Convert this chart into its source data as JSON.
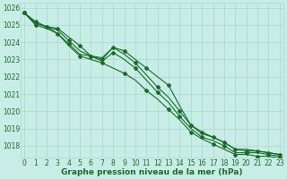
{
  "title": "Graphe pression niveau de la mer (hPa)",
  "bg_color": "#c8ece6",
  "grid_color": "#a8d8cc",
  "line_color": "#1a6b2a",
  "x_ticks": [
    0,
    1,
    2,
    3,
    4,
    5,
    6,
    7,
    8,
    9,
    10,
    11,
    12,
    13,
    14,
    15,
    16,
    17,
    18,
    19,
    20,
    21,
    22,
    23
  ],
  "ylim": [
    1017.3,
    1026.3
  ],
  "y_ticks": [
    1018,
    1019,
    1020,
    1021,
    1022,
    1023,
    1024,
    1025,
    1026
  ],
  "series": [
    [
      1025.7,
      1025.2,
      1024.9,
      1024.8,
      1024.3,
      1023.8,
      1023.2,
      1023.0,
      1023.7,
      1023.5,
      1023.0,
      1022.5,
      1022.0,
      1021.5,
      1020.3,
      1019.2,
      1018.7,
      1018.5,
      1018.2,
      1017.8,
      1017.8,
      1017.7,
      1017.6,
      1017.5
    ],
    [
      1025.7,
      1025.1,
      1024.9,
      1024.7,
      1024.1,
      1023.5,
      1023.2,
      1023.1,
      1023.7,
      1023.3,
      1022.8,
      1022.1,
      1021.4,
      1020.8,
      1020.0,
      1019.2,
      1018.8,
      1018.5,
      1018.2,
      1017.8,
      1017.7,
      1017.7,
      1017.6,
      1017.5
    ],
    [
      1025.7,
      1025.1,
      1024.9,
      1024.5,
      1023.9,
      1023.3,
      1023.2,
      1022.9,
      1023.4,
      1023.0,
      1022.5,
      1021.8,
      1021.1,
      1020.5,
      1019.7,
      1019.0,
      1018.5,
      1018.3,
      1018.0,
      1017.6,
      1017.6,
      1017.6,
      1017.5,
      1017.4
    ],
    [
      1025.7,
      1025.0,
      1024.8,
      1024.5,
      1023.8,
      1023.2,
      1023.0,
      1022.8,
      1022.5,
      1022.2,
      1021.8,
      1021.2,
      1020.7,
      1020.1,
      1019.5,
      1018.8,
      1018.4,
      1018.1,
      1017.8,
      1017.5,
      1017.5,
      1017.4,
      1017.4,
      1017.3
    ]
  ],
  "markers": [
    [
      [
        0,
        1025.7
      ],
      [
        1,
        1025.2
      ],
      [
        3,
        1024.8
      ],
      [
        5,
        1023.8
      ],
      [
        7,
        1023.0
      ],
      [
        9,
        1023.5
      ],
      [
        11,
        1022.5
      ],
      [
        13,
        1021.5
      ],
      [
        15,
        1019.2
      ],
      [
        17,
        1018.5
      ],
      [
        19,
        1017.8
      ],
      [
        21,
        1017.7
      ],
      [
        23,
        1017.5
      ]
    ],
    [
      [
        0,
        1025.7
      ],
      [
        2,
        1024.9
      ],
      [
        4,
        1024.1
      ],
      [
        6,
        1023.2
      ],
      [
        8,
        1023.7
      ],
      [
        10,
        1022.8
      ],
      [
        12,
        1021.4
      ],
      [
        14,
        1020.0
      ],
      [
        16,
        1018.8
      ],
      [
        18,
        1018.2
      ],
      [
        20,
        1017.7
      ],
      [
        22,
        1017.6
      ]
    ],
    [
      [
        0,
        1025.7
      ],
      [
        2,
        1024.9
      ],
      [
        4,
        1023.9
      ],
      [
        6,
        1023.2
      ],
      [
        8,
        1023.4
      ],
      [
        10,
        1022.5
      ],
      [
        12,
        1021.1
      ],
      [
        14,
        1019.7
      ],
      [
        16,
        1018.5
      ],
      [
        18,
        1018.0
      ],
      [
        20,
        1017.6
      ],
      [
        22,
        1017.5
      ]
    ],
    [
      [
        0,
        1025.7
      ],
      [
        1,
        1025.0
      ],
      [
        3,
        1024.5
      ],
      [
        5,
        1023.2
      ],
      [
        7,
        1022.8
      ],
      [
        9,
        1022.2
      ],
      [
        11,
        1021.2
      ],
      [
        13,
        1020.1
      ],
      [
        15,
        1018.8
      ],
      [
        17,
        1018.1
      ],
      [
        19,
        1017.5
      ],
      [
        21,
        1017.4
      ],
      [
        23,
        1017.3
      ]
    ]
  ],
  "tick_fontsize": 5.5,
  "label_fontsize": 6.5
}
